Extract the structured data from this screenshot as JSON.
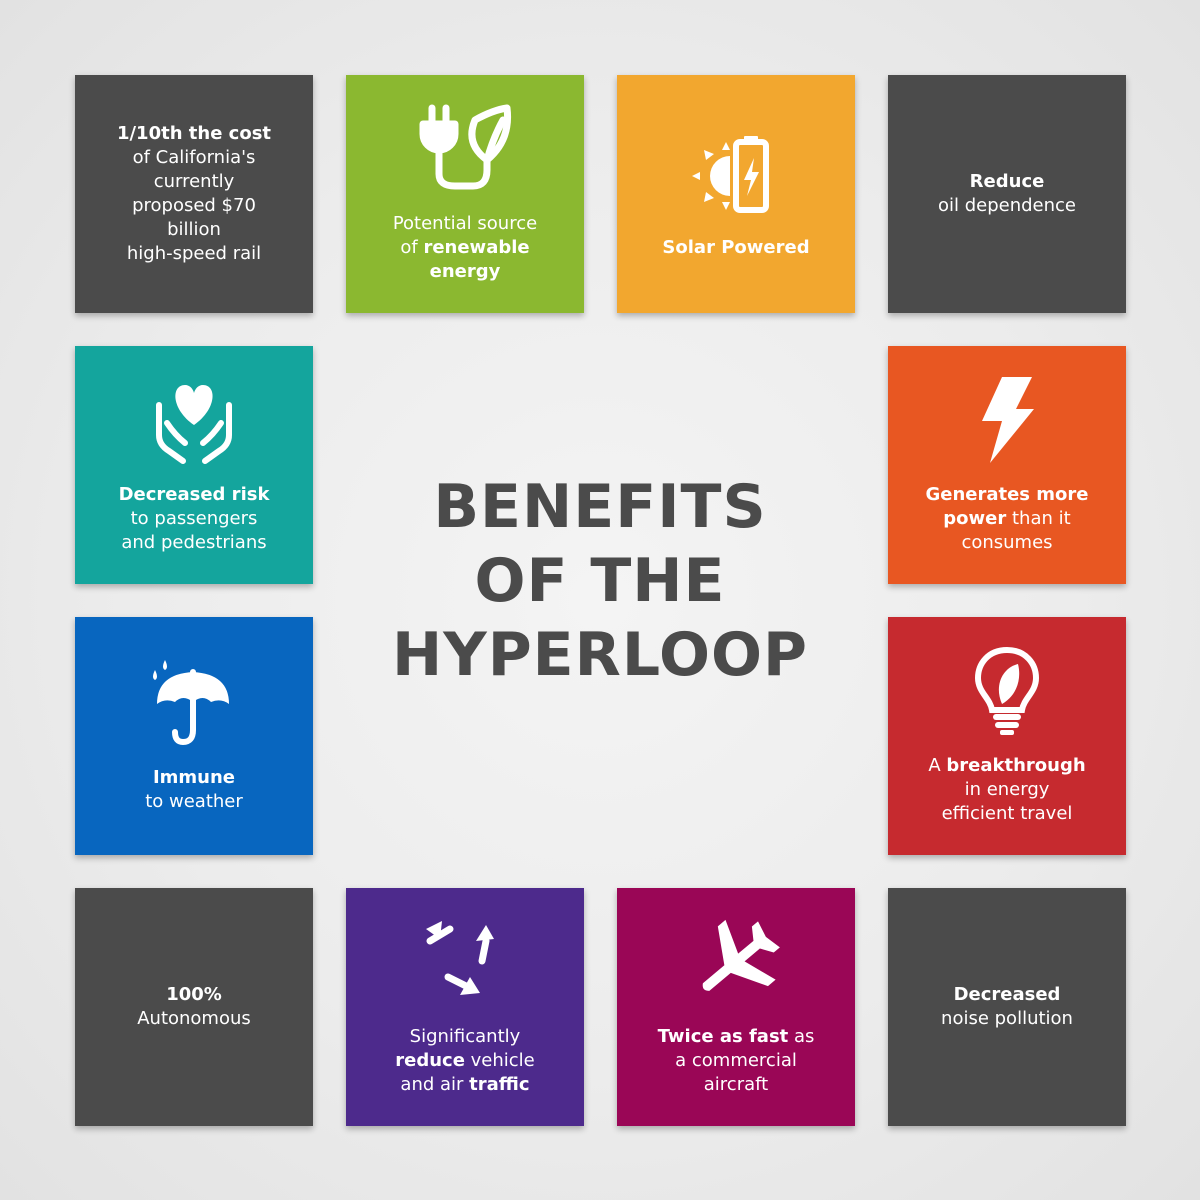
{
  "title": [
    "BENEFITS",
    "OF THE",
    "HYPERLOOP"
  ],
  "colors": {
    "background": "#ececec",
    "title": "#4b4b4b",
    "dark_gray": "#4b4b4b",
    "green": "#8bb830",
    "orange": "#f2a72f",
    "teal": "#14a59d",
    "red_orange": "#e85722",
    "blue": "#0866bf",
    "red": "#c62a2f",
    "purple": "#4d2a8c",
    "magenta": "#9a0656"
  },
  "tiles": [
    {
      "icon": null,
      "lines": [
        [
          {
            "t": "1/10th the cost",
            "b": true
          }
        ],
        [
          {
            "t": "of California's",
            "b": false
          }
        ],
        [
          {
            "t": "currently",
            "b": false
          }
        ],
        [
          {
            "t": "proposed $70",
            "b": false
          }
        ],
        [
          {
            "t": "billion",
            "b": false
          }
        ],
        [
          {
            "t": "high-speed rail",
            "b": false
          }
        ]
      ]
    },
    {
      "icon": "plug-leaf-icon",
      "lines": [
        [
          {
            "t": "Potential source",
            "b": false
          }
        ],
        [
          {
            "t": "of ",
            "b": false
          },
          {
            "t": "renewable",
            "b": true
          }
        ],
        [
          {
            "t": "energy",
            "b": true
          }
        ]
      ]
    },
    {
      "icon": "solar-battery-icon",
      "lines": [
        [
          {
            "t": "Solar Powered",
            "b": true
          }
        ]
      ]
    },
    {
      "icon": null,
      "lines": [
        [
          {
            "t": "Reduce",
            "b": true
          }
        ],
        [
          {
            "t": "oil dependence",
            "b": false
          }
        ]
      ]
    },
    {
      "icon": "hands-heart-icon",
      "lines": [
        [
          {
            "t": "Decreased risk",
            "b": true
          }
        ],
        [
          {
            "t": "to passengers",
            "b": false
          }
        ],
        [
          {
            "t": "and pedestrians",
            "b": false
          }
        ]
      ]
    },
    {
      "icon": "lightning-bolt-icon",
      "lines": [
        [
          {
            "t": "Generates ",
            "b": true
          },
          {
            "t": "more",
            "b": true
          }
        ],
        [
          {
            "t": "power",
            "b": true
          },
          {
            "t": " than it",
            "b": false
          }
        ],
        [
          {
            "t": "consumes",
            "b": false
          }
        ]
      ]
    },
    {
      "icon": "umbrella-rain-icon",
      "lines": [
        [
          {
            "t": "Immune",
            "b": true
          }
        ],
        [
          {
            "t": "to weather",
            "b": false
          }
        ]
      ]
    },
    {
      "icon": "lightbulb-leaf-icon",
      "lines": [
        [
          {
            "t": "A ",
            "b": false
          },
          {
            "t": "breakthrough",
            "b": true
          }
        ],
        [
          {
            "t": "in energy",
            "b": false
          }
        ],
        [
          {
            "t": "efficient travel",
            "b": false
          }
        ]
      ]
    },
    {
      "icon": null,
      "lines": [
        [
          {
            "t": "100%",
            "b": true
          }
        ],
        [
          {
            "t": "Autonomous",
            "b": false
          }
        ]
      ]
    },
    {
      "icon": "recycle-arrows-icon",
      "lines": [
        [
          {
            "t": "Significantly",
            "b": false
          }
        ],
        [
          {
            "t": "reduce",
            "b": true
          },
          {
            "t": " vehicle",
            "b": false
          }
        ],
        [
          {
            "t": "and air ",
            "b": false
          },
          {
            "t": "traffic",
            "b": true
          }
        ]
      ]
    },
    {
      "icon": "airplane-icon",
      "lines": [
        [
          {
            "t": "Twice as fast",
            "b": true
          },
          {
            "t": " as",
            "b": false
          }
        ],
        [
          {
            "t": "a commercial",
            "b": false
          }
        ],
        [
          {
            "t": "aircraft",
            "b": false
          }
        ]
      ]
    },
    {
      "icon": null,
      "lines": [
        [
          {
            "t": "Decreased",
            "b": true
          }
        ],
        [
          {
            "t": "noise pollution",
            "b": false
          }
        ]
      ]
    }
  ]
}
